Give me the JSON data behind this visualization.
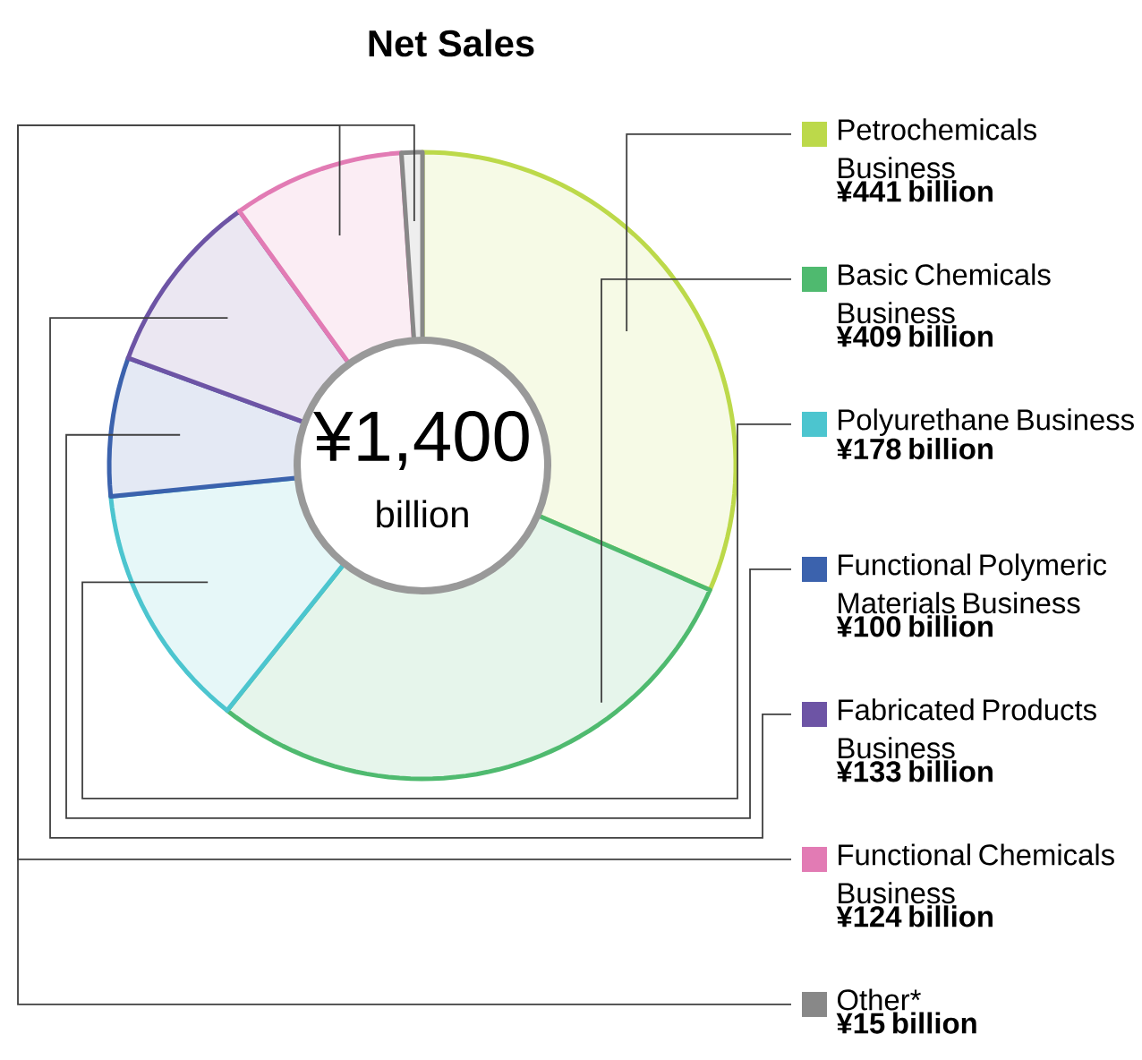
{
  "chart_data": {
    "type": "donut",
    "title": "Net Sales",
    "categories": [
      "Petrochemicals Business",
      "Basic Chemicals Business",
      "Polyurethane Business",
      "Functional Polymeric Materials Business",
      "Fabricated Products Business",
      "Functional Chemicals Business",
      "Other*"
    ],
    "values": [
      441,
      409,
      178,
      100,
      133,
      124,
      15
    ],
    "colors": [
      "#bcd94a",
      "#4fba6f",
      "#4cc5cf",
      "#3b62ad",
      "#6d54a5",
      "#e27bb4",
      "#888888"
    ],
    "value_labels": [
      "¥441 billion",
      "¥409 billion",
      "¥178 billion",
      "¥100 billion",
      "¥133 billion",
      "¥124 billion",
      "¥15 billion"
    ],
    "annotations": [
      "¥1,400",
      "billion"
    ],
    "legend": "right"
  }
}
